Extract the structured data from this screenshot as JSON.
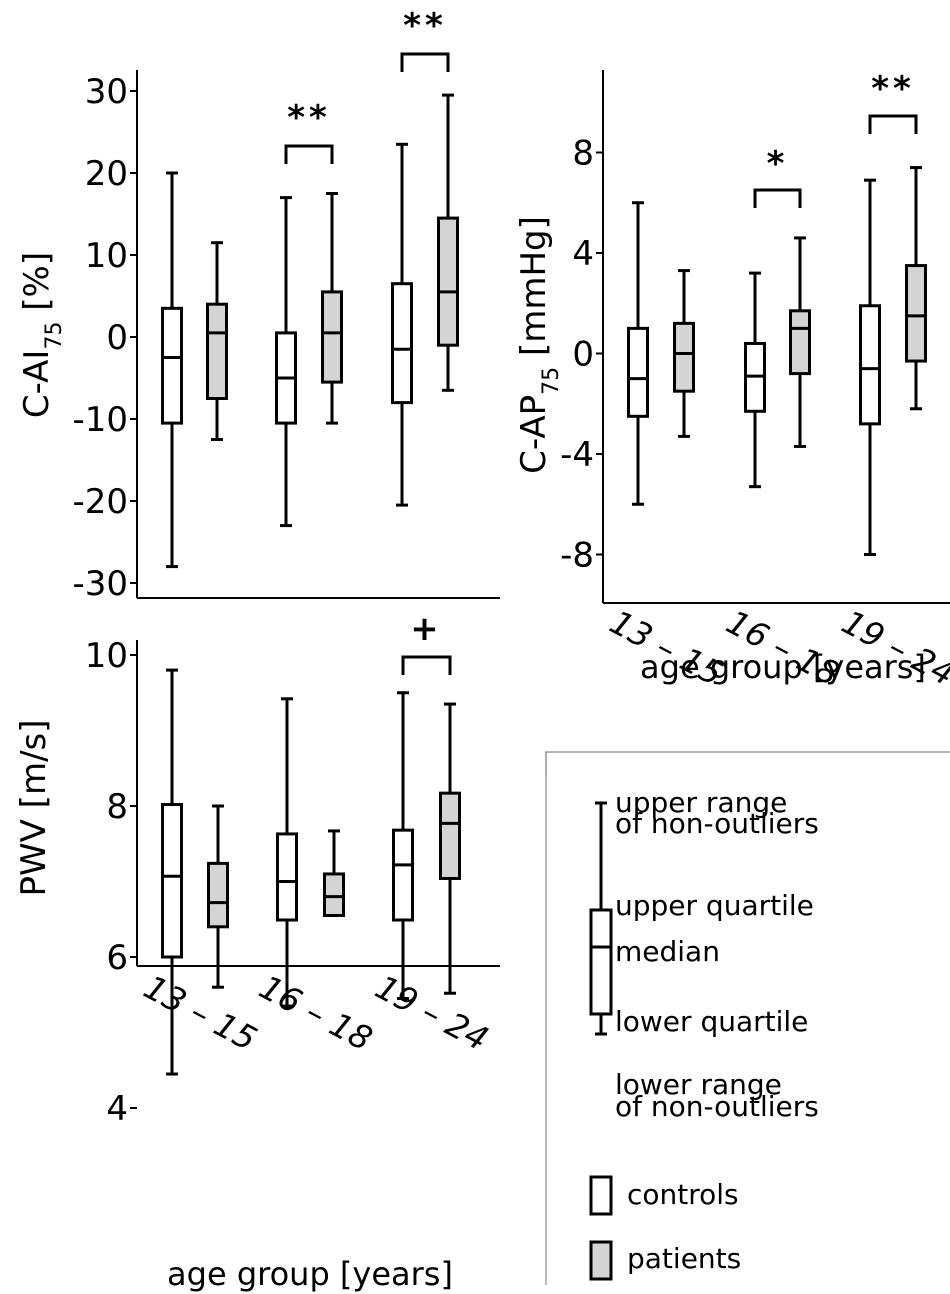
{
  "chart_data": [
    {
      "id": "cai75",
      "type": "boxplot",
      "ylabel_main": "C-AI",
      "ylabel_sub": "75",
      "ylabel_unit": " [%]",
      "ylim": [
        -30,
        35
      ],
      "yticks": [
        30,
        20,
        10,
        0,
        -10,
        -20,
        -30
      ],
      "groups": [
        {
          "controls": {
            "min": -28,
            "q1": -10.5,
            "median": -2.5,
            "q3": 3.5,
            "max": 20
          },
          "patients": {
            "min": -12.5,
            "q1": -7.5,
            "median": 0.5,
            "q3": 4,
            "max": 11.5
          },
          "sig": ""
        },
        {
          "controls": {
            "min": -23,
            "q1": -10.5,
            "median": -5,
            "q3": 0.5,
            "max": 17
          },
          "patients": {
            "min": -10.5,
            "q1": -5.5,
            "median": 0.5,
            "q3": 5.5,
            "max": 17.5
          },
          "sig": "**"
        },
        {
          "controls": {
            "min": -20.5,
            "q1": -8,
            "median": -1.5,
            "q3": 6.5,
            "max": 23.5
          },
          "patients": {
            "min": -6.5,
            "q1": -1,
            "median": 5.5,
            "q3": 14.5,
            "max": 29.5
          },
          "sig": "**"
        }
      ]
    },
    {
      "id": "cap75",
      "type": "boxplot",
      "ylabel_main": "C-AP",
      "ylabel_sub": "75",
      "ylabel_unit": " [mmHg]",
      "ylim": [
        -10.2,
        11.5
      ],
      "yticks": [
        8,
        4,
        0,
        -4,
        -8
      ],
      "groups": [
        {
          "controls": {
            "min": -6,
            "q1": -2.5,
            "median": -1,
            "q3": 1,
            "max": 6
          },
          "patients": {
            "min": -3.3,
            "q1": -1.5,
            "median": 0,
            "q3": 1.2,
            "max": 3.3
          },
          "sig": ""
        },
        {
          "controls": {
            "min": -5.3,
            "q1": -2.3,
            "median": -0.9,
            "q3": 0.4,
            "max": 3.2
          },
          "patients": {
            "min": -3.7,
            "q1": -0.8,
            "median": 1,
            "q3": 1.7,
            "max": 4.6
          },
          "sig": "*"
        },
        {
          "controls": {
            "min": -8,
            "q1": -2.8,
            "median": -0.6,
            "q3": 1.9,
            "max": 6.9
          },
          "patients": {
            "min": -2.2,
            "q1": -0.3,
            "median": 1.5,
            "q3": 3.5,
            "max": 7.4
          },
          "sig": "**"
        }
      ],
      "xticks": [
        "13 – 15",
        "16 – 18",
        "19 – 24"
      ],
      "xlabel": "age group [years]"
    },
    {
      "id": "pwv",
      "type": "boxplot",
      "ylabel_main": "PWV [m/s]",
      "ylabel_sub": "",
      "ylabel_unit": "",
      "ylim": [
        3.3,
        10.3
      ],
      "yticks": [
        10,
        8,
        6,
        4
      ],
      "groups": [
        {
          "controls": {
            "min": 4.45,
            "q1": 6,
            "median": 7.07,
            "q3": 8.02,
            "max": 9.8
          },
          "patients": {
            "min": 5.6,
            "q1": 6.4,
            "median": 6.72,
            "q3": 7.24,
            "max": 8
          },
          "sig": ""
        },
        {
          "controls": {
            "min": 5.35,
            "q1": 6.49,
            "median": 7,
            "q3": 7.63,
            "max": 9.42
          },
          "patients": {
            "min": 6.55,
            "q1": 6.55,
            "median": 6.8,
            "q3": 7.1,
            "max": 7.67
          },
          "sig": ""
        },
        {
          "controls": {
            "min": 5.45,
            "q1": 6.49,
            "median": 7.22,
            "q3": 7.68,
            "max": 9.5
          },
          "patients": {
            "min": 5.52,
            "q1": 7.04,
            "median": 7.77,
            "q3": 8.17,
            "max": 9.35
          },
          "sig": "+"
        }
      ],
      "xticks": [
        "13 – 15",
        "16 – 18",
        "19 – 24"
      ],
      "xlabel": "age group [years]"
    }
  ],
  "legend": {
    "upper_range": [
      "upper range",
      "of non-outliers"
    ],
    "upper_quartile": "upper quartile",
    "median": "median",
    "lower_quartile": "lower quartile",
    "lower_range": [
      "lower range",
      "of non-outliers"
    ],
    "controls": "controls",
    "patients": "patients"
  },
  "colors": {
    "controls_fill": "#ffffff",
    "patients_fill": "#d4d4d4",
    "stroke": "#000000"
  }
}
